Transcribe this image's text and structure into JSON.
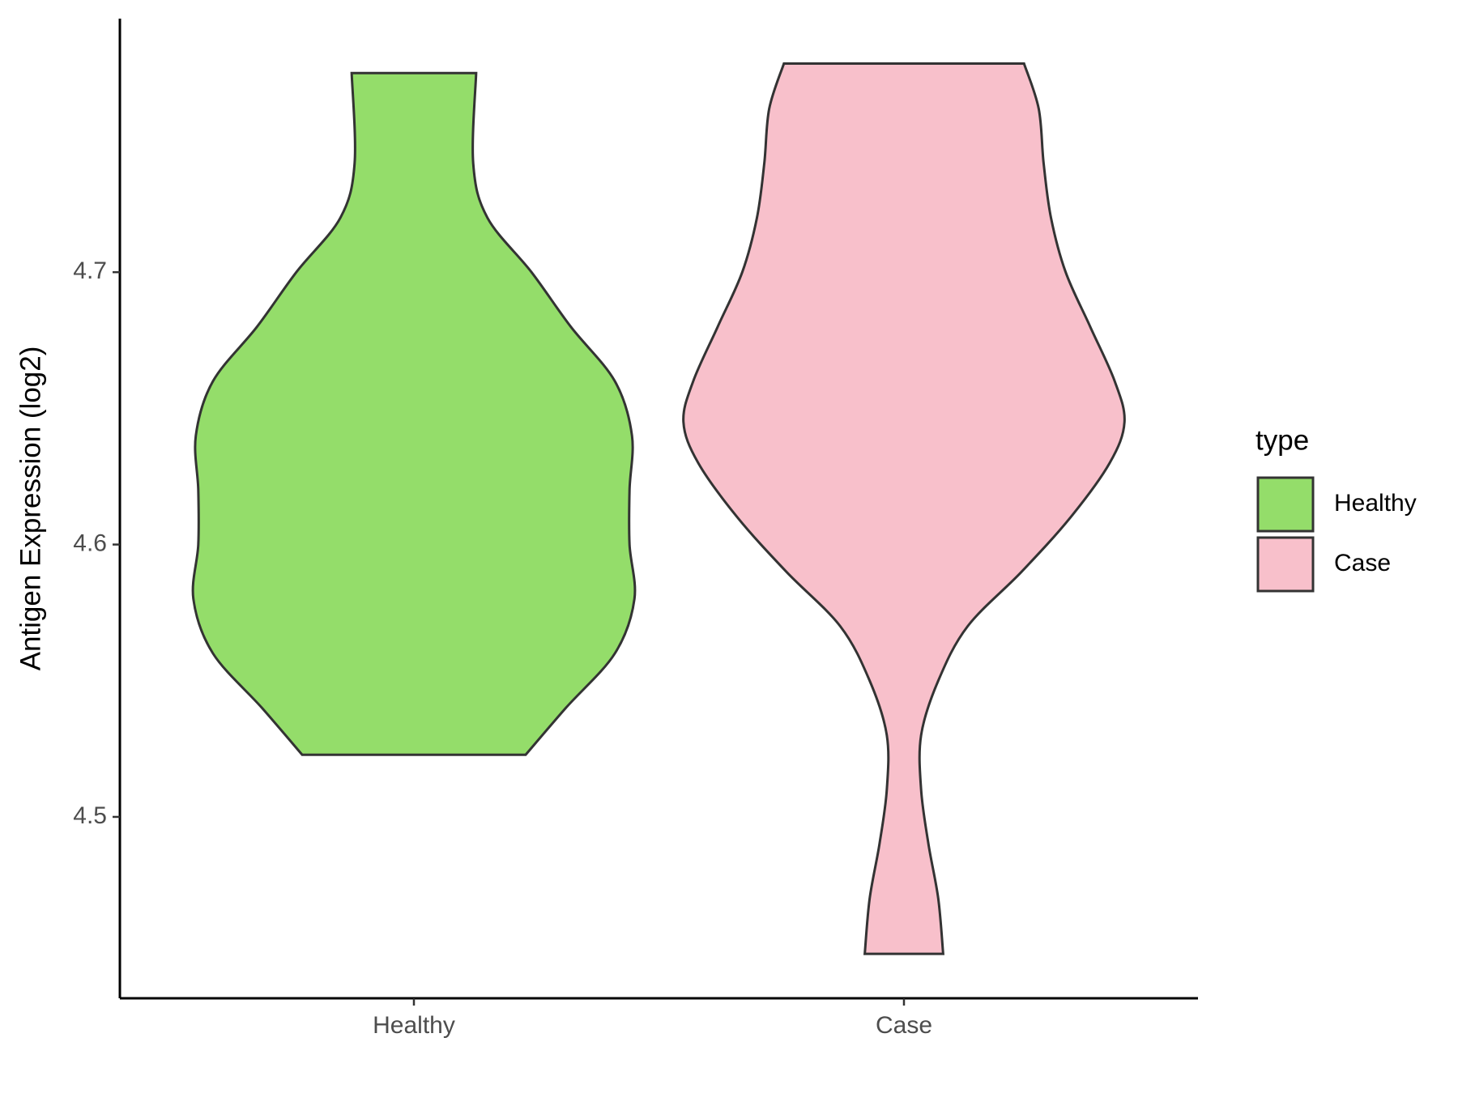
{
  "chart_data": {
    "type": "violin",
    "y_label": "Antigen Expression (log2)",
    "categories": [
      "Healthy",
      "Case"
    ],
    "xlim": [
      0.4,
      2.6
    ],
    "ylim": [
      4.4334,
      4.7931
    ],
    "yticks": [
      4.5,
      4.6,
      4.7
    ],
    "legend_title": "type",
    "legend": "right",
    "series": [
      {
        "name": "Healthy",
        "color": "#94dd6a",
        "y": [
          4.5228,
          4.54,
          4.56,
          4.58,
          4.6,
          4.62,
          4.64,
          4.66,
          4.68,
          4.7,
          4.72,
          4.74,
          4.7731
        ],
        "half_width": [
          0.228,
          0.31,
          0.41,
          0.45,
          0.44,
          0.44,
          0.445,
          0.41,
          0.32,
          0.24,
          0.15,
          0.121,
          0.127
        ]
      },
      {
        "name": "Case",
        "color": "#f8c0cb",
        "y": [
          4.4497,
          4.47,
          4.49,
          4.51,
          4.53,
          4.55,
          4.57,
          4.59,
          4.61,
          4.63,
          4.645,
          4.66,
          4.68,
          4.7,
          4.72,
          4.74,
          4.76,
          4.7766
        ],
        "half_width": [
          0.08,
          0.07,
          0.05,
          0.035,
          0.035,
          0.07,
          0.13,
          0.24,
          0.34,
          0.42,
          0.45,
          0.43,
          0.38,
          0.33,
          0.3,
          0.285,
          0.275,
          0.245
        ]
      }
    ]
  }
}
